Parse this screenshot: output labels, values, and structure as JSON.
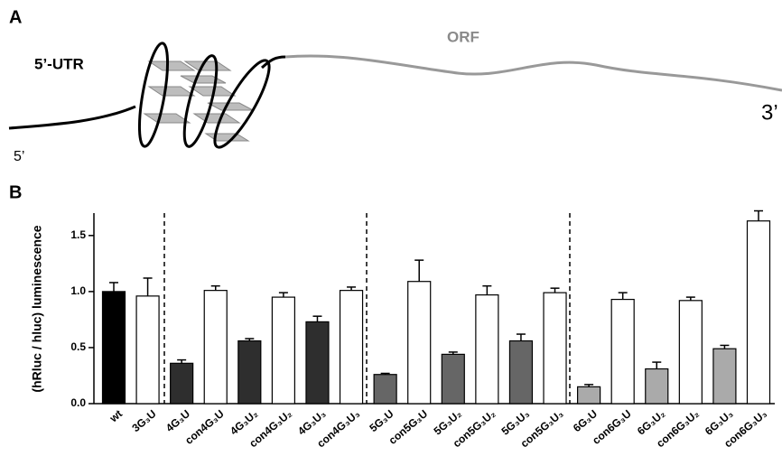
{
  "panel_a": {
    "label": "A",
    "utr_label": "5’-UTR",
    "orf_label": "ORF",
    "three_prime": "3’",
    "five_prime": "5’"
  },
  "panel_b_label": "B",
  "chart_data": {
    "type": "bar",
    "y_label": "(hRluc / hluc) luminescence",
    "categories": [
      "wt",
      "3G₃U",
      "4G₃U",
      "con4G₃U",
      "4G₃U₂",
      "con4G₃U₂",
      "4G₃U₃",
      "con4G₃U₃",
      "5G₃U",
      "con5G₃U",
      "5G₃U₂",
      "con5G₃U₂",
      "5G₃U₃",
      "con5G₃U₃",
      "6G₃U",
      "con6G₃U",
      "6G₃U₂",
      "con6G₃U₂",
      "6G₃U₃",
      "con6G₃U₃"
    ],
    "values": [
      1.0,
      0.96,
      0.36,
      1.01,
      0.56,
      0.95,
      0.73,
      1.01,
      0.26,
      1.09,
      0.44,
      0.97,
      0.56,
      0.99,
      0.15,
      0.93,
      0.31,
      0.92,
      0.49,
      1.63
    ],
    "errors": [
      0.08,
      0.16,
      0.03,
      0.04,
      0.02,
      0.04,
      0.05,
      0.03,
      0.01,
      0.19,
      0.02,
      0.08,
      0.06,
      0.04,
      0.02,
      0.06,
      0.06,
      0.03,
      0.03,
      0.09
    ],
    "colors": [
      "#000000",
      "#ffffff",
      "#2e2e2e",
      "#ffffff",
      "#2e2e2e",
      "#ffffff",
      "#2e2e2e",
      "#ffffff",
      "#666666",
      "#ffffff",
      "#666666",
      "#ffffff",
      "#666666",
      "#ffffff",
      "#aaaaaa",
      "#ffffff",
      "#aaaaaa",
      "#ffffff",
      "#aaaaaa",
      "#ffffff"
    ],
    "ylim": [
      0,
      1.7
    ],
    "yticks": [
      {
        "value": 0,
        "label": "0.0"
      },
      {
        "value": 0.5,
        "label": "0.5"
      },
      {
        "value": 1.0,
        "label": "1.0"
      },
      {
        "value": 1.5,
        "label": "1.5"
      }
    ]
  }
}
